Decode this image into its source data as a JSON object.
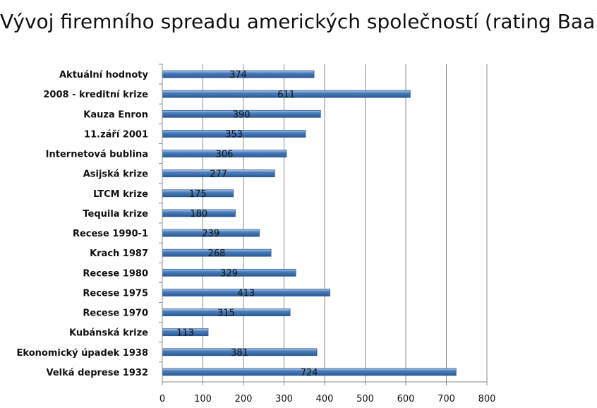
{
  "chart_data": {
    "type": "bar",
    "orientation": "horizontal",
    "title": "Vývoj firemního spreadu amerických společností (rating Baa)",
    "categories": [
      "Aktuální hodnoty",
      "2008 - kreditní  krize",
      "Kauza Enron",
      "11.září 2001",
      "Internetová bublina",
      "Asijská krize",
      "LTCM krize",
      "Tequila krize",
      "Recese 1990-1",
      "Krach 1987",
      "Recese 1980",
      "Recese 1975",
      "Recese 1970",
      "Kubánská krize",
      "Ekonomický úpadek  1938",
      "Velká deprese 1932"
    ],
    "values": [
      374,
      611,
      390,
      353,
      306,
      277,
      175,
      180,
      239,
      268,
      329,
      413,
      315,
      113,
      381,
      724
    ],
    "xlim": [
      0,
      800
    ],
    "xticks": [
      0,
      100,
      200,
      300,
      400,
      500,
      600,
      700,
      800
    ],
    "grid": "vertical",
    "legend": "none",
    "bar_color": "#4a7ebb",
    "bar_color_dark": "#2c5a95",
    "bar_color_light": "#b9d0ee"
  }
}
